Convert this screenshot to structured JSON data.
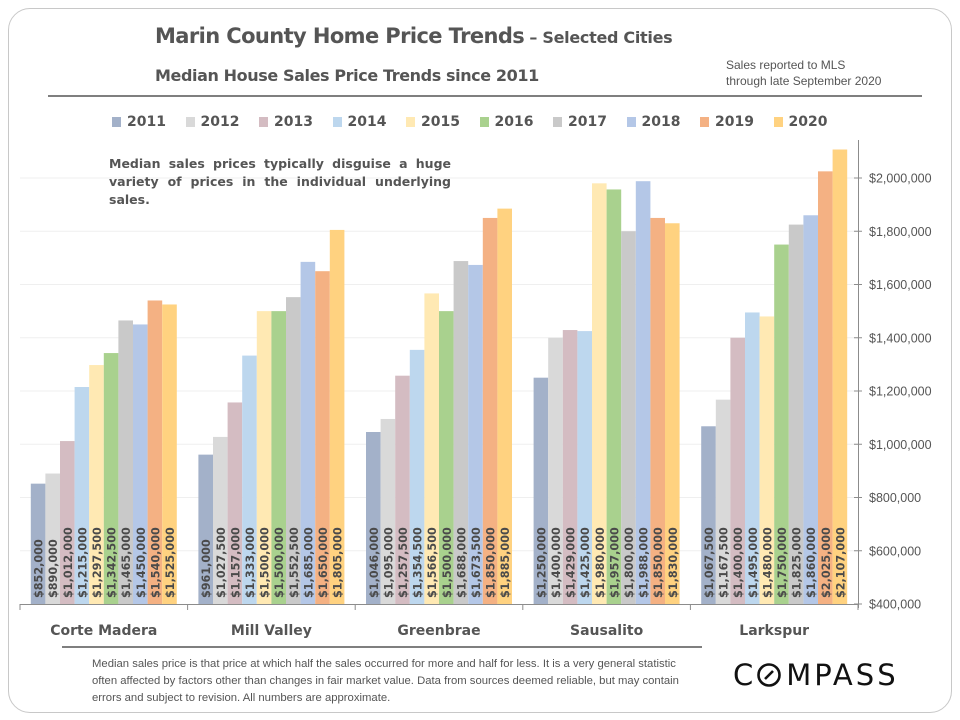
{
  "header": {
    "title": "Marin County Home Price Trends",
    "title_suffix": " – Selected Cities",
    "subtitle": "Median House Sales Price Trends since 2011",
    "note_line1": "Sales reported to MLS",
    "note_line2": "through late September 2020"
  },
  "callout": "Median sales prices typically disguise a huge variety of prices in the individual underlying sales.",
  "footer": {
    "disclaimer": "Median sales price is that price at which half the sales occurred for more and half for less. It is a very general statistic often affected by factors other than changes in fair market value. Data from sources deemed reliable, but may contain errors and subject to revision. All numbers are approximate.",
    "logo": "COMPASS"
  },
  "chart_data": {
    "type": "bar",
    "title": "Median House Sales Price Trends since 2011",
    "xlabel": "",
    "ylabel": "",
    "categories": [
      "Corte Madera",
      "Mill Valley",
      "Greenbrae",
      "Sausalito",
      "Larkspur"
    ],
    "ylim": [
      400000,
      2100000
    ],
    "yticks": [
      400000,
      600000,
      800000,
      1000000,
      1200000,
      1400000,
      1600000,
      1800000,
      2000000
    ],
    "ytick_labels": [
      "$400,000",
      "$600,000",
      "$800,000",
      "$1,000,000",
      "$1,200,000",
      "$1,400,000",
      "$1,600,000",
      "$1,800,000",
      "$2,000,000"
    ],
    "y_axis_side": "right",
    "grid": true,
    "legend_position": "top",
    "series": [
      {
        "name": "2011",
        "color": "#a3b1c9",
        "values": [
          852000,
          961000,
          1046000,
          1250000,
          1067500
        ],
        "labels": [
          "$852,000",
          "$961,000",
          "$1,046,000",
          "$1,250,000",
          "$1,067,500"
        ]
      },
      {
        "name": "2012",
        "color": "#d9d9d9",
        "values": [
          890000,
          1027500,
          1095000,
          1400000,
          1167500
        ],
        "labels": [
          "$890,000",
          "$1,027,500",
          "$1,095,000",
          "$1,400,000",
          "$1,167,500"
        ]
      },
      {
        "name": "2013",
        "color": "#d4bcc2",
        "values": [
          1012000,
          1157000,
          1257500,
          1429000,
          1400000
        ],
        "labels": [
          "$1,012,000",
          "$1,157,000",
          "$1,257,500",
          "$1,429,000",
          "$1,400,000"
        ]
      },
      {
        "name": "2014",
        "color": "#bdd7ee",
        "values": [
          1215000,
          1333000,
          1354500,
          1425000,
          1495000
        ],
        "labels": [
          "$1,215,000",
          "$1,333,000",
          "$1,354,500",
          "$1,425,000",
          "$1,495,000"
        ]
      },
      {
        "name": "2015",
        "color": "#ffe9b3",
        "values": [
          1297500,
          1500000,
          1566500,
          1980000,
          1480000
        ],
        "labels": [
          "$1,297,500",
          "$1,500,000",
          "$1,566,500",
          "$1,980,000",
          "$1,480,000"
        ]
      },
      {
        "name": "2016",
        "color": "#a9d18e",
        "values": [
          1342500,
          1500000,
          1500000,
          1957000,
          1750000
        ],
        "labels": [
          "$1,342,500",
          "$1,500,000",
          "$1,500,000",
          "$1,957,000",
          "$1,750,000"
        ]
      },
      {
        "name": "2017",
        "color": "#c9c9c9",
        "values": [
          1465000,
          1552500,
          1688000,
          1800000,
          1825000
        ],
        "labels": [
          "$1,465,000",
          "$1,552,500",
          "$1,688,000",
          "$1,800,000",
          "$1,825,000"
        ]
      },
      {
        "name": "2018",
        "color": "#b4c7e7",
        "values": [
          1450000,
          1685000,
          1673500,
          1988000,
          1860000
        ],
        "labels": [
          "$1,450,000",
          "$1,685,000",
          "$1,673,500",
          "$1,988,000",
          "$1,860,000"
        ]
      },
      {
        "name": "2019",
        "color": "#f4b183",
        "values": [
          1540000,
          1650000,
          1850000,
          1850000,
          2025000
        ],
        "labels": [
          "$1,540,000",
          "$1,650,000",
          "$1,850,000",
          "$1,850,000",
          "$2,025,000"
        ]
      },
      {
        "name": "2020",
        "color": "#ffd280",
        "values": [
          1525000,
          1805000,
          1885000,
          1830000,
          2107000
        ],
        "labels": [
          "$1,525,000",
          "$1,805,000",
          "$1,885,000",
          "$1,830,000",
          "$2,107,000"
        ]
      }
    ]
  }
}
